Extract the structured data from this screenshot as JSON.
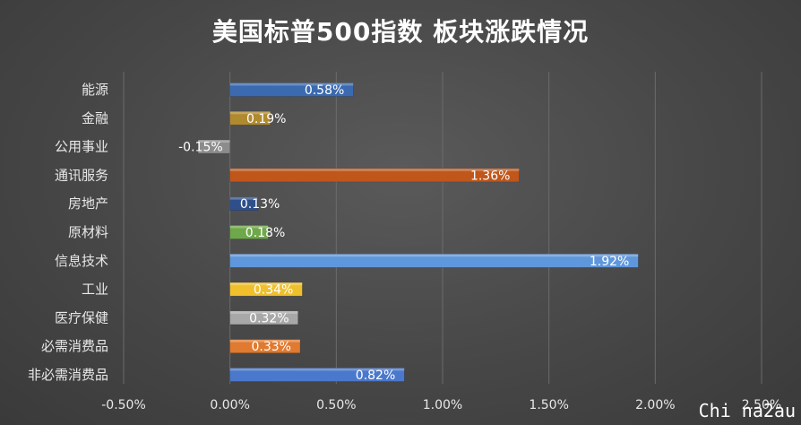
{
  "watermark": "Chi na2au",
  "chart_data": {
    "type": "bar",
    "orientation": "horizontal",
    "title": "美国标普500指数 板块涨跌情况",
    "xlim": [
      -0.5,
      2.5
    ],
    "xticks": [
      "-0.50%",
      "0.00%",
      "0.50%",
      "1.00%",
      "1.50%",
      "2.00%",
      "2.50%"
    ],
    "grid": true,
    "categories": [
      "能源",
      "金融",
      "公用事业",
      "通讯服务",
      "房地产",
      "原材料",
      "信息技术",
      "工业",
      "医疗保健",
      "必需消费品",
      "非必需消费品"
    ],
    "values": [
      0.58,
      0.19,
      -0.15,
      1.36,
      0.13,
      0.18,
      1.92,
      0.34,
      0.32,
      0.33,
      0.82
    ],
    "data_labels": [
      "0.58%",
      "0.19%",
      "-0.15%",
      "1.36%",
      "0.13%",
      "0.18%",
      "1.92%",
      "0.34%",
      "0.32%",
      "0.33%",
      "0.82%"
    ],
    "colors": [
      "#3b6ab0",
      "#b08a2e",
      "#8c8c8c",
      "#c0561a",
      "#2f4f8a",
      "#6fa84a",
      "#5f97dc",
      "#f0c02c",
      "#a8a8a8",
      "#e07a30",
      "#4a78cc"
    ]
  }
}
